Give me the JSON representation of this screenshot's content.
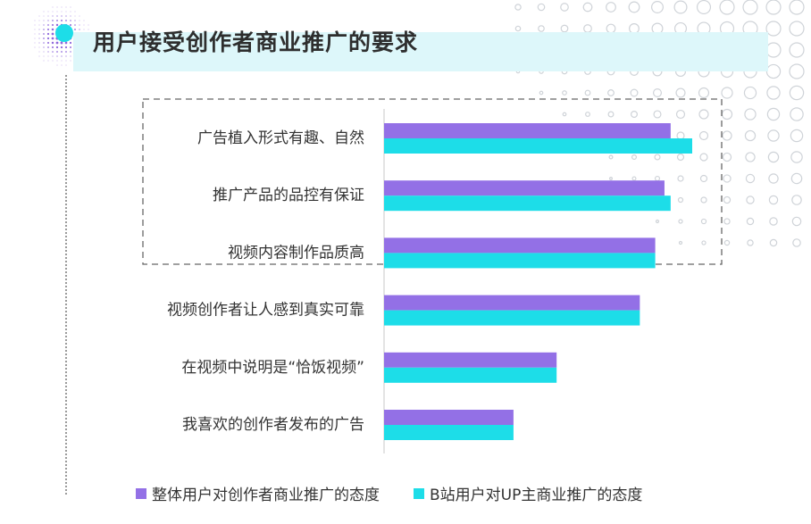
{
  "title": "用户接受创作者商业推广的要求",
  "chart_data": {
    "type": "bar",
    "orientation": "horizontal",
    "categories": [
      "广告植入形式有趣、自然",
      "推广产品的品控有保证",
      "视频内容制作品质高",
      "视频创作者让人感到真实可靠",
      "在视频中说明是“恰饭视频”",
      "我喜欢的创作者发布的广告"
    ],
    "series": [
      {
        "name": "整体用户对创作者商业推广的态度",
        "color": "#9370e6",
        "values": [
          93,
          91,
          88,
          83,
          56,
          42
        ]
      },
      {
        "name": "B站用户对UP主商业推广的态度",
        "color": "#1ddde8",
        "values": [
          100,
          93,
          88,
          83,
          56,
          42
        ]
      }
    ],
    "xlim": [
      0,
      100
    ],
    "grid": false,
    "legend": "bottom",
    "highlight": {
      "categories": [
        "广告植入形式有趣、自然",
        "推广产品的品控有保证",
        "视频内容制作品质高"
      ],
      "style": "dashed-box"
    }
  }
}
